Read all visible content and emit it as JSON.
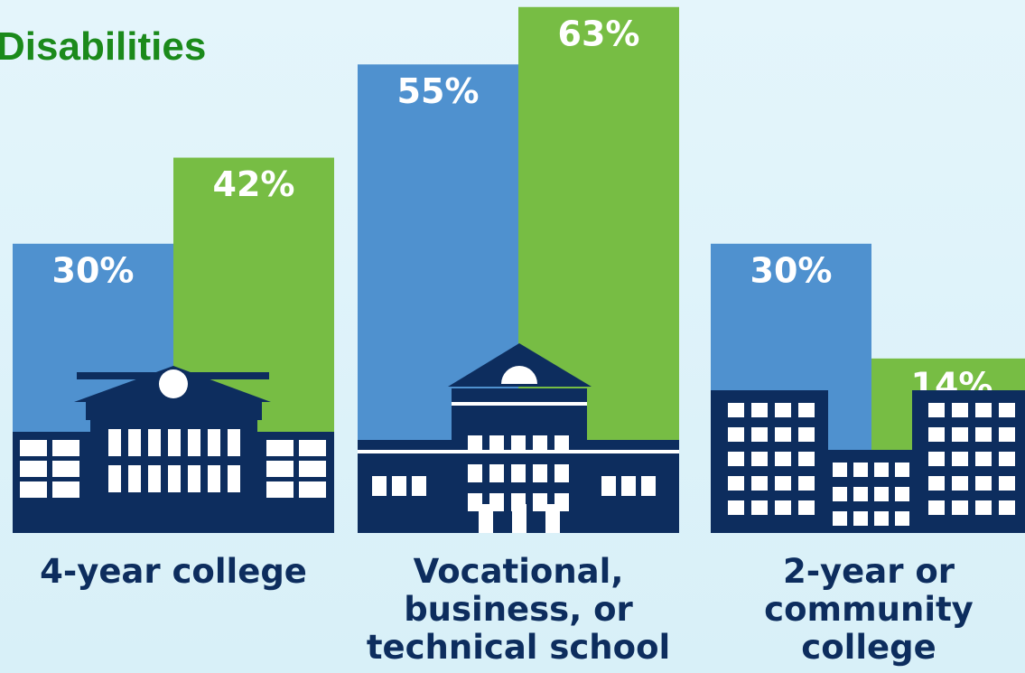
{
  "chart_data": {
    "type": "bar",
    "title": "Disabilities",
    "categories": [
      "4-year college",
      "Vocational, business, or technical school",
      "2-year or community college"
    ],
    "series": [
      {
        "color": "#4f91cf",
        "values": [
          30,
          55,
          30
        ],
        "value_labels": [
          "30%",
          "55%",
          "30%"
        ]
      },
      {
        "color": "#77bd44",
        "values": [
          42,
          63,
          14
        ],
        "value_labels": [
          "42%",
          "63%",
          "14%"
        ]
      }
    ]
  }
}
